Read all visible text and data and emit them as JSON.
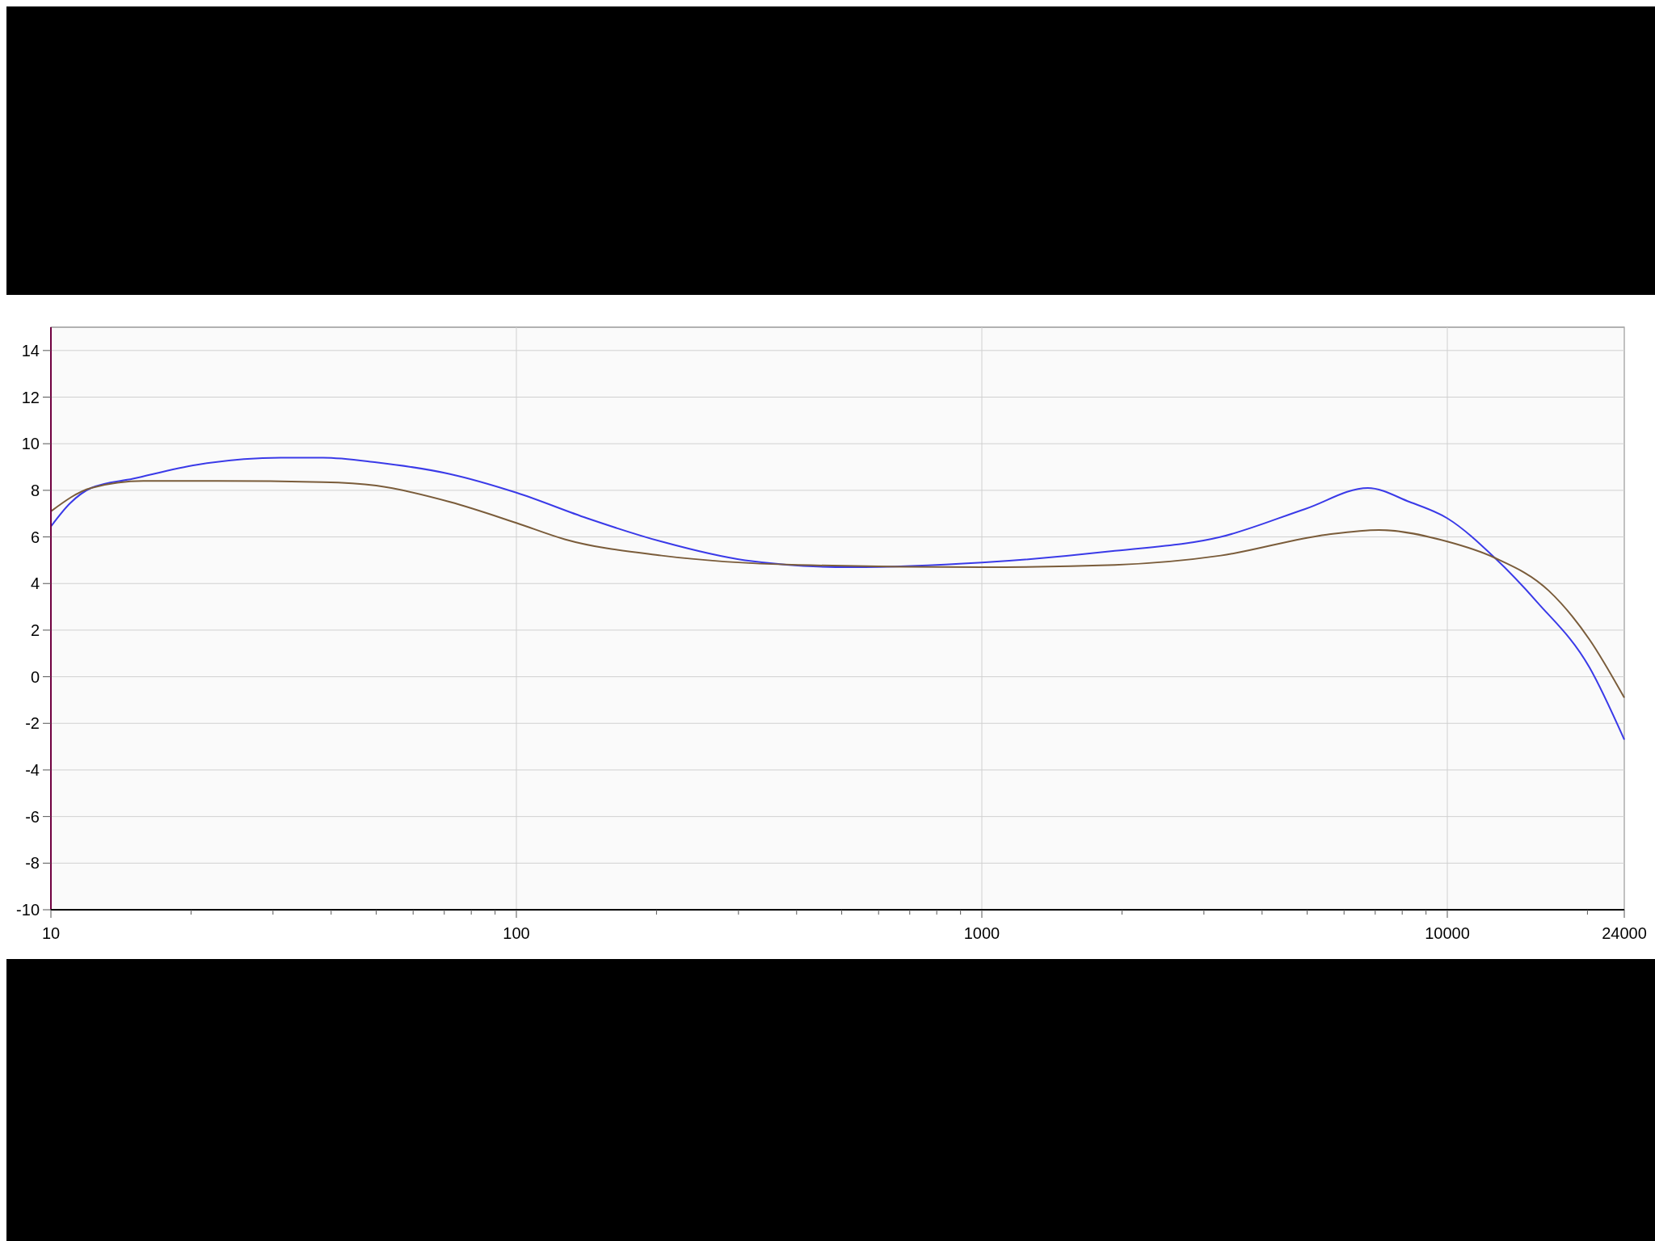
{
  "chart_data": {
    "type": "line",
    "log": "x",
    "grid": true,
    "xlim": [
      10,
      24000
    ],
    "ylim": [
      -10,
      15
    ],
    "xticks": [
      10,
      {
        "value": 20,
        "label": null
      },
      {
        "value": 30,
        "label": null
      },
      {
        "value": 40,
        "label": null
      },
      {
        "value": 50,
        "label": null
      },
      {
        "value": 60,
        "label": null
      },
      {
        "value": 70,
        "label": null
      },
      {
        "value": 80,
        "label": null
      },
      {
        "value": 90,
        "label": null
      },
      100,
      {
        "value": 200,
        "label": null
      },
      {
        "value": 300,
        "label": null
      },
      {
        "value": 400,
        "label": null
      },
      {
        "value": 500,
        "label": null
      },
      {
        "value": 600,
        "label": null
      },
      {
        "value": 700,
        "label": null
      },
      {
        "value": 800,
        "label": null
      },
      {
        "value": 900,
        "label": null
      },
      1000,
      {
        "value": 2000,
        "label": null
      },
      {
        "value": 3000,
        "label": null
      },
      {
        "value": 4000,
        "label": null
      },
      {
        "value": 5000,
        "label": null
      },
      {
        "value": 6000,
        "label": null
      },
      {
        "value": 7000,
        "label": null
      },
      {
        "value": 8000,
        "label": null
      },
      {
        "value": 9000,
        "label": null
      },
      10000,
      {
        "value": 20000,
        "label": null
      },
      24000
    ],
    "yticks": [
      -10,
      -8,
      -6,
      -4,
      -2,
      0,
      2,
      4,
      6,
      8,
      10,
      12,
      14
    ],
    "series": [
      {
        "color": "#3a3ae8",
        "x": [
          10,
          11,
          12.2,
          15,
          20.6,
          31.2,
          38.4,
          50,
          72,
          100,
          142,
          205,
          310,
          522,
          1000,
          1930,
          3260,
          4950,
          6750,
          8300,
          10000,
          12650,
          15600,
          20200,
          24000
        ],
        "values": [
          6.45,
          7.45,
          8.1,
          8.5,
          9.1,
          9.4,
          9.4,
          9.2,
          8.7,
          7.9,
          6.8,
          5.8,
          5.0,
          4.7,
          4.9,
          5.4,
          6.0,
          7.2,
          8.1,
          7.5,
          6.8,
          5.1,
          3.2,
          0.4,
          -2.7
        ]
      },
      {
        "color": "#7a5c3a",
        "x": [
          10,
          12.2,
          15.8,
          22.8,
          38.4,
          50,
          72,
          100,
          127,
          205,
          403,
          1000,
          1930,
          3260,
          5510,
          7130,
          10000,
          12650,
          16500,
          20200,
          24000
        ],
        "values": [
          7.1,
          8.1,
          8.4,
          8.4,
          8.35,
          8.2,
          7.5,
          6.6,
          5.9,
          5.2,
          4.8,
          4.7,
          4.8,
          5.2,
          6.1,
          6.3,
          5.8,
          5.1,
          3.7,
          1.6,
          -0.9
        ]
      }
    ]
  }
}
